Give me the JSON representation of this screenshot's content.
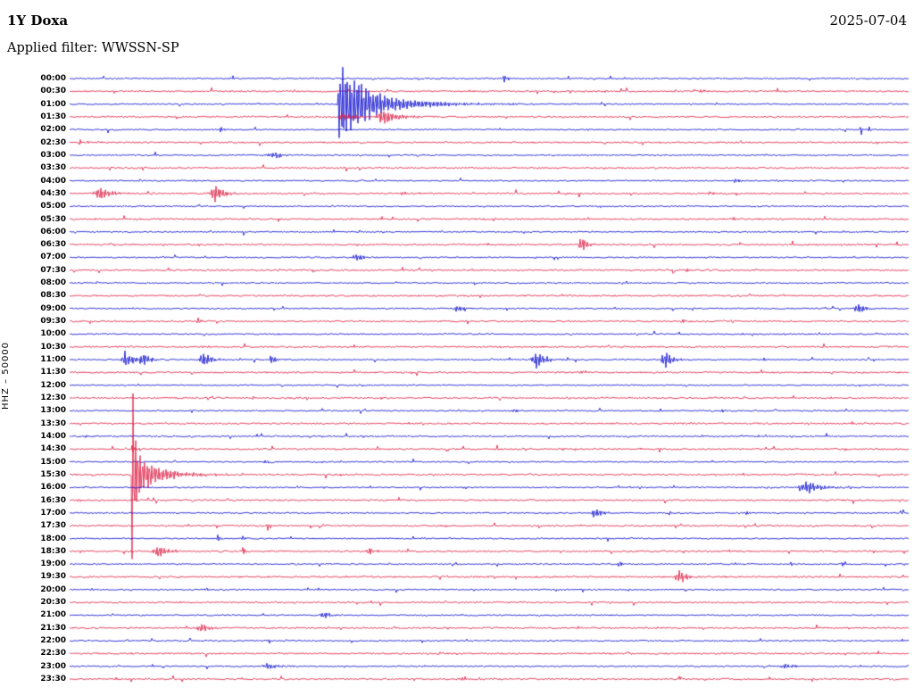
{
  "header": {
    "station": "1Y Doxa",
    "date": "2025-07-04",
    "filter": "Applied filter: WWSSN-SP"
  },
  "chart_data": {
    "type": "line",
    "subtype": "helicorder-seismogram",
    "title": "1Y Doxa",
    "date": "2025-07-04",
    "filter": "WWSSN-SP",
    "ylabel": "HHZ – 50000",
    "minutes_per_row": 30,
    "trace_colors": {
      "even": "#0000cc",
      "odd": "#dc143c"
    },
    "row_labels": [
      "00:00",
      "00:30",
      "01:00",
      "01:30",
      "02:00",
      "02:30",
      "03:00",
      "03:30",
      "04:00",
      "04:30",
      "05:00",
      "05:30",
      "06:00",
      "06:30",
      "07:00",
      "07:30",
      "08:00",
      "08:30",
      "09:00",
      "09:30",
      "10:00",
      "10:30",
      "11:00",
      "11:30",
      "12:00",
      "12:30",
      "13:00",
      "13:30",
      "14:00",
      "14:30",
      "15:00",
      "15:30",
      "16:00",
      "16:30",
      "17:00",
      "17:30",
      "18:00",
      "18:30",
      "19:00",
      "19:30",
      "20:00",
      "20:30",
      "21:00",
      "21:30",
      "22:00",
      "22:30",
      "23:00",
      "23:30"
    ],
    "events": [
      {
        "r": 0,
        "m": 15.5,
        "a": 8,
        "ri": 1,
        "d": 4
      },
      {
        "r": 1,
        "m": 22.6,
        "a": 2.5,
        "ri": 2,
        "d": 6
      },
      {
        "r": 2,
        "m": 9.65,
        "a": 46,
        "ri": 1.5,
        "d": 26
      },
      {
        "r": 2,
        "m": 9.8,
        "a": 10,
        "ri": 2,
        "d": 70
      },
      {
        "r": 3,
        "m": 9.65,
        "a": 5,
        "ri": 2,
        "d": 25
      },
      {
        "r": 3,
        "m": 11.2,
        "a": 10,
        "ri": 6,
        "d": 16
      },
      {
        "r": 4,
        "m": 5.4,
        "a": 4,
        "ri": 3,
        "d": 6
      },
      {
        "r": 4,
        "m": 28.3,
        "a": 7,
        "ri": 0.8,
        "d": 1.5
      },
      {
        "r": 4,
        "m": 28.6,
        "a": 6,
        "ri": 0.8,
        "d": 1.5
      },
      {
        "r": 5,
        "m": 0.35,
        "a": 6,
        "ri": 0.7,
        "d": 1.5
      },
      {
        "r": 5,
        "m": 0.6,
        "a": 6,
        "ri": 0.7,
        "d": 1.5
      },
      {
        "r": 6,
        "m": 7.3,
        "a": 4,
        "ri": 8,
        "d": 14
      },
      {
        "r": 8,
        "m": 23.8,
        "a": 2.5,
        "ri": 2,
        "d": 5
      },
      {
        "r": 9,
        "m": 1.1,
        "a": 9,
        "ri": 6,
        "d": 12
      },
      {
        "r": 9,
        "m": 5.2,
        "a": 11,
        "ri": 5,
        "d": 10
      },
      {
        "r": 9,
        "m": 11.9,
        "a": 3,
        "ri": 2,
        "d": 5
      },
      {
        "r": 9,
        "m": 22.8,
        "a": 3,
        "ri": 2,
        "d": 5
      },
      {
        "r": 11,
        "m": 23.7,
        "a": 3,
        "ri": 2,
        "d": 4
      },
      {
        "r": 13,
        "m": 18.3,
        "a": 10,
        "ri": 3,
        "d": 7
      },
      {
        "r": 14,
        "m": 10.3,
        "a": 4,
        "ri": 6,
        "d": 10
      },
      {
        "r": 15,
        "m": 22.1,
        "a": 2.5,
        "ri": 2,
        "d": 4
      },
      {
        "r": 18,
        "m": 13.9,
        "a": 4,
        "ri": 5,
        "d": 9
      },
      {
        "r": 18,
        "m": 28.2,
        "a": 6,
        "ri": 4,
        "d": 8
      },
      {
        "r": 19,
        "m": 4.6,
        "a": 5,
        "ri": 1,
        "d": 3
      },
      {
        "r": 19,
        "m": 21.9,
        "a": 4,
        "ri": 1.5,
        "d": 4
      },
      {
        "r": 21,
        "m": 4.8,
        "a": 2.5,
        "ri": 2,
        "d": 4
      },
      {
        "r": 22,
        "m": 2.0,
        "a": 10,
        "ri": 4,
        "d": 10
      },
      {
        "r": 22,
        "m": 2.6,
        "a": 8,
        "ri": 3,
        "d": 8
      },
      {
        "r": 22,
        "m": 4.8,
        "a": 10,
        "ri": 4,
        "d": 8
      },
      {
        "r": 22,
        "m": 7.2,
        "a": 5,
        "ri": 3,
        "d": 7
      },
      {
        "r": 22,
        "m": 16.7,
        "a": 11,
        "ri": 5,
        "d": 10
      },
      {
        "r": 22,
        "m": 21.3,
        "a": 11,
        "ri": 4,
        "d": 9
      },
      {
        "r": 22,
        "m": 24.8,
        "a": 3,
        "ri": 2,
        "d": 5
      },
      {
        "r": 23,
        "m": 18.3,
        "a": 4,
        "ri": 2,
        "d": 5
      },
      {
        "r": 26,
        "m": 15.9,
        "a": 2.5,
        "ri": 2,
        "d": 4
      },
      {
        "r": 28,
        "m": 0.55,
        "a": 3,
        "ri": 1,
        "d": 3
      },
      {
        "r": 29,
        "m": 2.24,
        "a": 6,
        "ri": 1,
        "d": 4
      },
      {
        "r": 29,
        "m": 20.4,
        "a": 2.5,
        "ri": 2,
        "d": 4
      },
      {
        "r": 30,
        "m": 7.0,
        "a": 3,
        "ri": 2,
        "d": 5
      },
      {
        "r": 31,
        "m": 2.24,
        "a": 186,
        "ri": 0.5,
        "d": 2.2
      },
      {
        "r": 31,
        "m": 2.35,
        "a": 26,
        "ri": 2,
        "d": 14
      },
      {
        "r": 31,
        "m": 2.6,
        "a": 9,
        "ri": 4,
        "d": 40
      },
      {
        "r": 32,
        "m": 14.1,
        "a": 2.5,
        "ri": 2,
        "d": 4
      },
      {
        "r": 32,
        "m": 26.4,
        "a": 8,
        "ri": 8,
        "d": 14
      },
      {
        "r": 33,
        "m": 0.3,
        "a": 3,
        "ri": 1,
        "d": 4
      },
      {
        "r": 34,
        "m": 18.8,
        "a": 7,
        "ri": 4,
        "d": 8
      },
      {
        "r": 34,
        "m": 24.2,
        "a": 3,
        "ri": 2,
        "d": 4
      },
      {
        "r": 35,
        "m": 7.1,
        "a": 8,
        "ri": 1,
        "d": 2.5
      },
      {
        "r": 36,
        "m": 5.3,
        "a": 5,
        "ri": 1.5,
        "d": 3
      },
      {
        "r": 36,
        "m": 6.2,
        "a": 4,
        "ri": 1.5,
        "d": 3
      },
      {
        "r": 37,
        "m": 3.2,
        "a": 9,
        "ri": 5,
        "d": 9
      },
      {
        "r": 37,
        "m": 6.2,
        "a": 9,
        "ri": 0.8,
        "d": 2
      },
      {
        "r": 37,
        "m": 10.7,
        "a": 6,
        "ri": 2,
        "d": 5
      },
      {
        "r": 38,
        "m": 19.7,
        "a": 3,
        "ri": 2,
        "d": 4
      },
      {
        "r": 38,
        "m": 25.8,
        "a": 4,
        "ri": 1.5,
        "d": 3
      },
      {
        "r": 38,
        "m": 27.6,
        "a": 3,
        "ri": 1.5,
        "d": 3
      },
      {
        "r": 39,
        "m": 21.8,
        "a": 9,
        "ri": 4,
        "d": 8
      },
      {
        "r": 42,
        "m": 9.1,
        "a": 4,
        "ri": 5,
        "d": 9
      },
      {
        "r": 43,
        "m": 4.7,
        "a": 6,
        "ri": 4,
        "d": 8
      },
      {
        "r": 46,
        "m": 7.1,
        "a": 4,
        "ri": 6,
        "d": 10
      },
      {
        "r": 46,
        "m": 25.6,
        "a": 3,
        "ri": 6,
        "d": 12
      },
      {
        "r": 47,
        "m": 14.0,
        "a": 2,
        "ri": 3,
        "d": 6
      }
    ]
  }
}
